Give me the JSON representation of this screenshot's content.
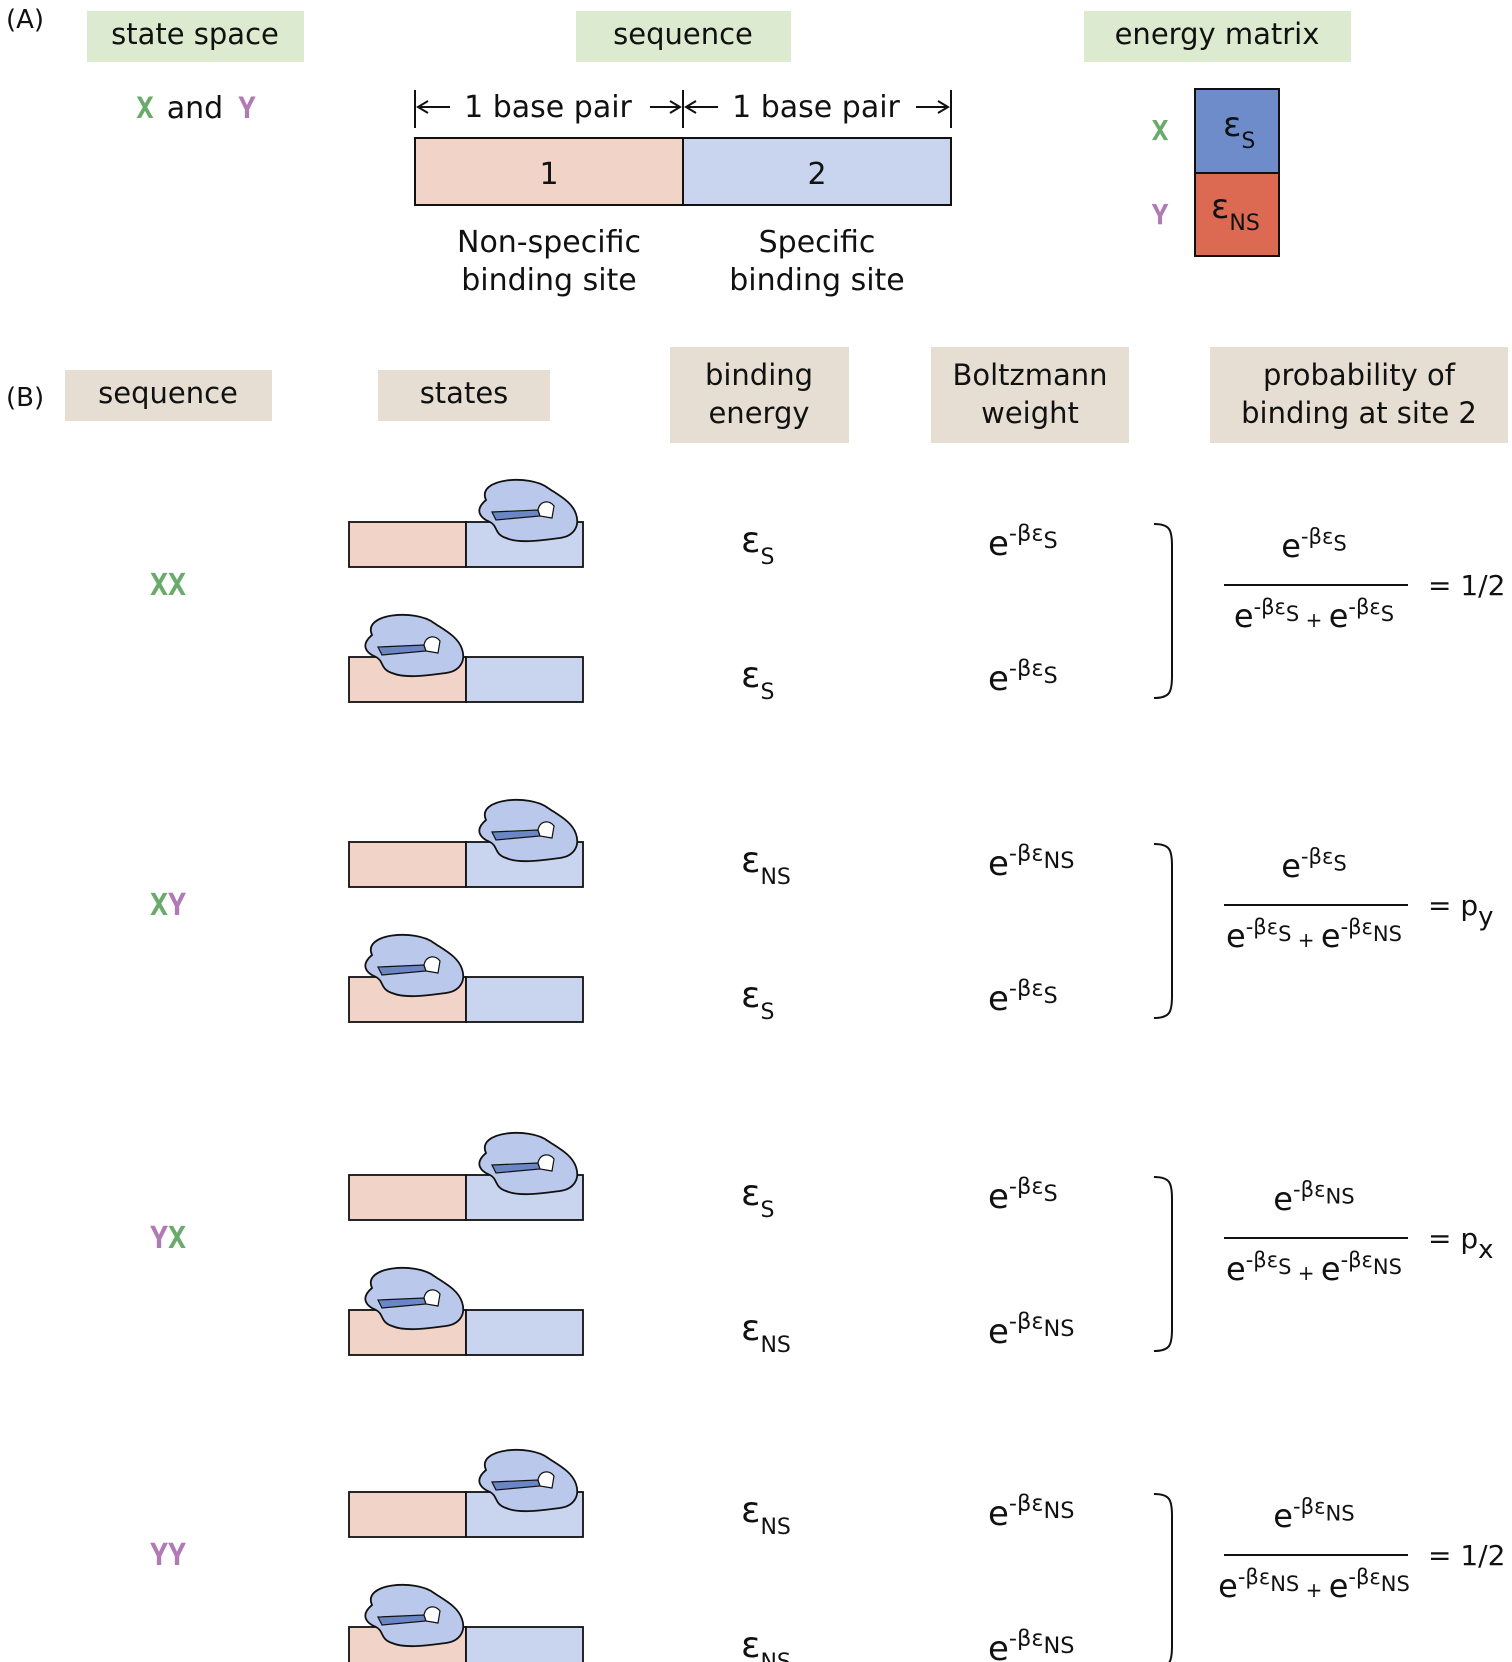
{
  "panel_a": {
    "label": "(A)",
    "state_space_header": "state space",
    "state_x": "X",
    "state_and": "and",
    "state_y": "Y",
    "sequence_header": "sequence",
    "bp_label_1": "1 base pair",
    "bp_label_2": "1 base pair",
    "site_1_number": "1",
    "site_2_number": "2",
    "site_1_caption_line1": "Non-specific",
    "site_1_caption_line2": "binding site",
    "site_2_caption_line1": "Specific",
    "site_2_caption_line2": "binding site",
    "energy_matrix_header": "energy matrix",
    "matrix_row_x": "X",
    "matrix_row_y": "Y",
    "matrix_x_main": "ε",
    "matrix_x_sub": "S",
    "matrix_y_main": "ε",
    "matrix_y_sub": "NS"
  },
  "panel_b": {
    "label": "(B)",
    "headers": {
      "sequence": "sequence",
      "states": "states",
      "binding_energy_line1": "binding",
      "binding_energy_line2": "energy",
      "boltzmann_line1": "Boltzmann",
      "boltzmann_line2": "weight",
      "probability_line1": "probability of",
      "probability_line2": "binding at site 2"
    },
    "rows": [
      {
        "seq": [
          {
            "t": "X",
            "c": "x"
          },
          {
            "t": "X",
            "c": "x"
          }
        ],
        "top_energy_sub": "S",
        "bottom_energy_sub": "S",
        "top_weight_sub": "S",
        "bottom_weight_sub": "S",
        "num_sub": "S",
        "den_sub_1": "S",
        "den_sub_2": "S",
        "result": "= 1/2"
      },
      {
        "seq": [
          {
            "t": "X",
            "c": "x"
          },
          {
            "t": "Y",
            "c": "y"
          }
        ],
        "top_energy_sub": "NS",
        "bottom_energy_sub": "S",
        "top_weight_sub": "NS",
        "bottom_weight_sub": "S",
        "num_sub": "S",
        "den_sub_1": "S",
        "den_sub_2": "NS",
        "result": "= p",
        "result_sub": "y"
      },
      {
        "seq": [
          {
            "t": "Y",
            "c": "y"
          },
          {
            "t": "X",
            "c": "x"
          }
        ],
        "top_energy_sub": "S",
        "bottom_energy_sub": "NS",
        "top_weight_sub": "S",
        "bottom_weight_sub": "NS",
        "num_sub": "NS",
        "den_sub_1": "S",
        "den_sub_2": "NS",
        "result": "= p",
        "result_sub": "x"
      },
      {
        "seq": [
          {
            "t": "Y",
            "c": "y"
          },
          {
            "t": "Y",
            "c": "y"
          }
        ],
        "top_energy_sub": "NS",
        "bottom_energy_sub": "NS",
        "top_weight_sub": "NS",
        "bottom_weight_sub": "NS",
        "num_sub": "NS",
        "den_sub_1": "NS",
        "den_sub_2": "NS",
        "result": "= 1/2"
      }
    ]
  },
  "symbols": {
    "e": "e",
    "minus_beta_eps": "-βε",
    "eps": "ε",
    "plus": "+"
  },
  "colors": {
    "green_header": "#dcebd0",
    "tan_header": "#e6ded2",
    "x_green": "#6aaa6a",
    "y_purple": "#b07ab5",
    "site_pink": "#f2d3c8",
    "site_blue": "#c9d5ef",
    "matrix_blue": "#6d8cc9",
    "matrix_red": "#dc6a53",
    "protein_fill": "#b9c8eb",
    "protein_slot": "#6b86c4"
  }
}
